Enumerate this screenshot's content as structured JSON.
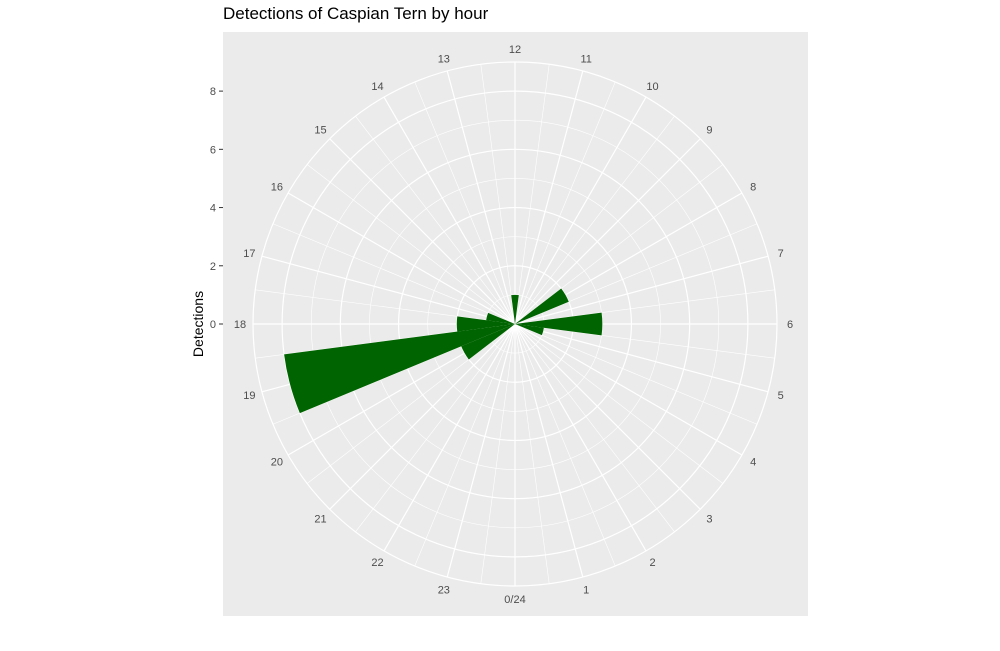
{
  "chart_data": {
    "type": "bar",
    "coord": "polar",
    "title": "Detections of Caspian Tern by hour",
    "xlabel": "",
    "ylabel": "Detections",
    "ylim": [
      0,
      9
    ],
    "y_ticks": [
      "0",
      "2",
      "4",
      "6",
      "8"
    ],
    "categories": [
      "0/24",
      "1",
      "2",
      "3",
      "4",
      "5",
      "6",
      "7",
      "8",
      "9",
      "10",
      "11",
      "12",
      "13",
      "14",
      "15",
      "16",
      "17",
      "18",
      "19",
      "20",
      "21",
      "22",
      "23"
    ],
    "values": [
      0,
      0,
      0,
      0,
      0,
      1,
      3,
      0,
      2,
      0,
      0,
      0,
      1,
      0,
      0,
      0,
      0,
      1,
      2,
      8,
      2,
      0,
      0,
      0
    ],
    "bar_color": "#006400",
    "panel_color": "#ebebeb",
    "grid_color": "#ffffff",
    "grid": true,
    "legend": "none"
  }
}
